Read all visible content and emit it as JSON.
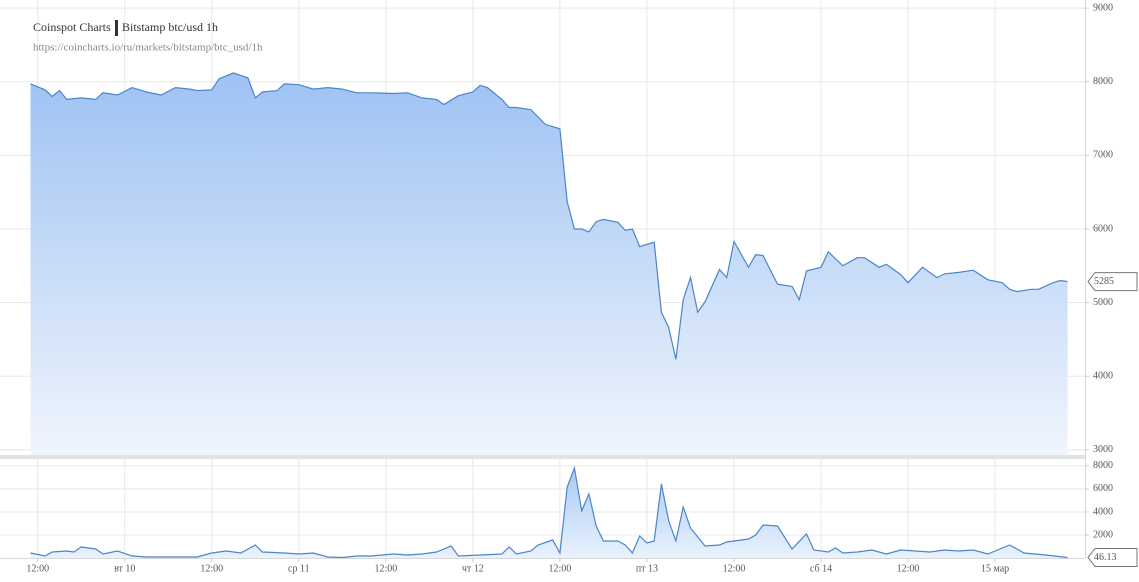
{
  "chart_data": [
    {
      "type": "area",
      "title": "Coinspot Charts",
      "subtitle": "Bitstamp  btc/usd  1h",
      "source": "https://coincharts.io/ru/markets/bitstamp/btc_usd/1h",
      "xlim": [
        6.8,
        156.4
      ],
      "ylim": [
        2930,
        9110
      ],
      "yticks": [
        3000,
        4000,
        5000,
        6000,
        7000,
        8000,
        9000
      ],
      "grid": true,
      "series": [
        {
          "color": "#4a86c8",
          "x": [
            11,
            13,
            14,
            15,
            16,
            18,
            20,
            21,
            23,
            25,
            27,
            29,
            31,
            33,
            34,
            36,
            37,
            39,
            41,
            42,
            43,
            45,
            46,
            48,
            50,
            52,
            54,
            56,
            58,
            61,
            63,
            65,
            67,
            68,
            70,
            72,
            73,
            74,
            76,
            77,
            78,
            80,
            82,
            84,
            85,
            86,
            87,
            88,
            89,
            90,
            92,
            93,
            94,
            95,
            97,
            98,
            99,
            100,
            101,
            102,
            103,
            104,
            106,
            107,
            108,
            110,
            111,
            112,
            114,
            116,
            117,
            118,
            120,
            121,
            123,
            125,
            126,
            128,
            129,
            131,
            132,
            134,
            136,
            137,
            139,
            141,
            143,
            145,
            146,
            147,
            149,
            150,
            152,
            153,
            154
          ],
          "values": [
            7970,
            7890,
            7800,
            7880,
            7760,
            7780,
            7760,
            7850,
            7820,
            7920,
            7860,
            7820,
            7920,
            7900,
            7880,
            7890,
            8040,
            8120,
            8050,
            7780,
            7860,
            7880,
            7970,
            7960,
            7900,
            7920,
            7900,
            7850,
            7850,
            7840,
            7850,
            7780,
            7760,
            7690,
            7810,
            7860,
            7950,
            7920,
            7760,
            7650,
            7650,
            7620,
            7420,
            7360,
            6370,
            6000,
            6000,
            5960,
            6100,
            6130,
            6090,
            5980,
            6000,
            5760,
            5820,
            4870,
            4660,
            4230,
            5040,
            5340,
            4870,
            5010,
            5450,
            5340,
            5830,
            5480,
            5650,
            5640,
            5250,
            5220,
            5040,
            5430,
            5480,
            5690,
            5500,
            5610,
            5610,
            5480,
            5520,
            5380,
            5270,
            5480,
            5340,
            5390,
            5410,
            5440,
            5310,
            5270,
            5180,
            5150,
            5180,
            5180,
            5270,
            5300,
            5285
          ]
        }
      ]
    },
    {
      "type": "area",
      "xlim": [
        6.8,
        156.4
      ],
      "ylim": [
        0,
        8600
      ],
      "yticks": [
        2000,
        4000,
        6000,
        8000
      ],
      "grid": true,
      "xticks": [
        {
          "value": 12,
          "label": "12:00"
        },
        {
          "value": 24,
          "label": "вт 10"
        },
        {
          "value": 36,
          "label": "12:00"
        },
        {
          "value": 48,
          "label": "ср 11"
        },
        {
          "value": 60,
          "label": "12:00"
        },
        {
          "value": 72,
          "label": "чт 12"
        },
        {
          "value": 84,
          "label": "12:00"
        },
        {
          "value": 96,
          "label": "пт 13"
        },
        {
          "value": 108,
          "label": "12:00"
        },
        {
          "value": 120,
          "label": "сб 14"
        },
        {
          "value": 132,
          "label": "12:00"
        },
        {
          "value": 144,
          "label": "15 мар"
        }
      ],
      "series": [
        {
          "color": "#4a86c8",
          "x": [
            11,
            13,
            14,
            16,
            17,
            18,
            20,
            21,
            23,
            25,
            27,
            31,
            34,
            36,
            38,
            40,
            42,
            43,
            46,
            48,
            50,
            52,
            54,
            56,
            58,
            61,
            63,
            65,
            67,
            69,
            70,
            73,
            76,
            77,
            78,
            80,
            81,
            83,
            84,
            85,
            86,
            87,
            88,
            89,
            90,
            92,
            93,
            94,
            95,
            96,
            97,
            98,
            99,
            100,
            101,
            102,
            103,
            104,
            106,
            107,
            110,
            111,
            112,
            114,
            116,
            118,
            119,
            121,
            122,
            123,
            125,
            127,
            129,
            131,
            133,
            135,
            137,
            139,
            141,
            143,
            144,
            146,
            148,
            151,
            154
          ],
          "values": [
            435,
            174,
            522,
            609,
            522,
            957,
            783,
            348,
            609,
            174,
            87,
            87,
            87,
            435,
            609,
            435,
            1130,
            522,
            435,
            348,
            435,
            87,
            40,
            174,
            174,
            348,
            261,
            348,
            522,
            1040,
            174,
            261,
            348,
            957,
            348,
            609,
            1130,
            1570,
            435,
            6170,
            7830,
            4090,
            5570,
            2780,
            1480,
            1480,
            1130,
            435,
            1910,
            1300,
            1480,
            6430,
            3220,
            1480,
            4430,
            2610,
            1830,
            1040,
            1130,
            1390,
            1650,
            2000,
            2870,
            2780,
            783,
            2090,
            696,
            522,
            870,
            435,
            522,
            696,
            348,
            696,
            609,
            522,
            696,
            609,
            696,
            348,
            609,
            1130,
            435,
            261,
            46.13
          ]
        }
      ]
    }
  ]
}
